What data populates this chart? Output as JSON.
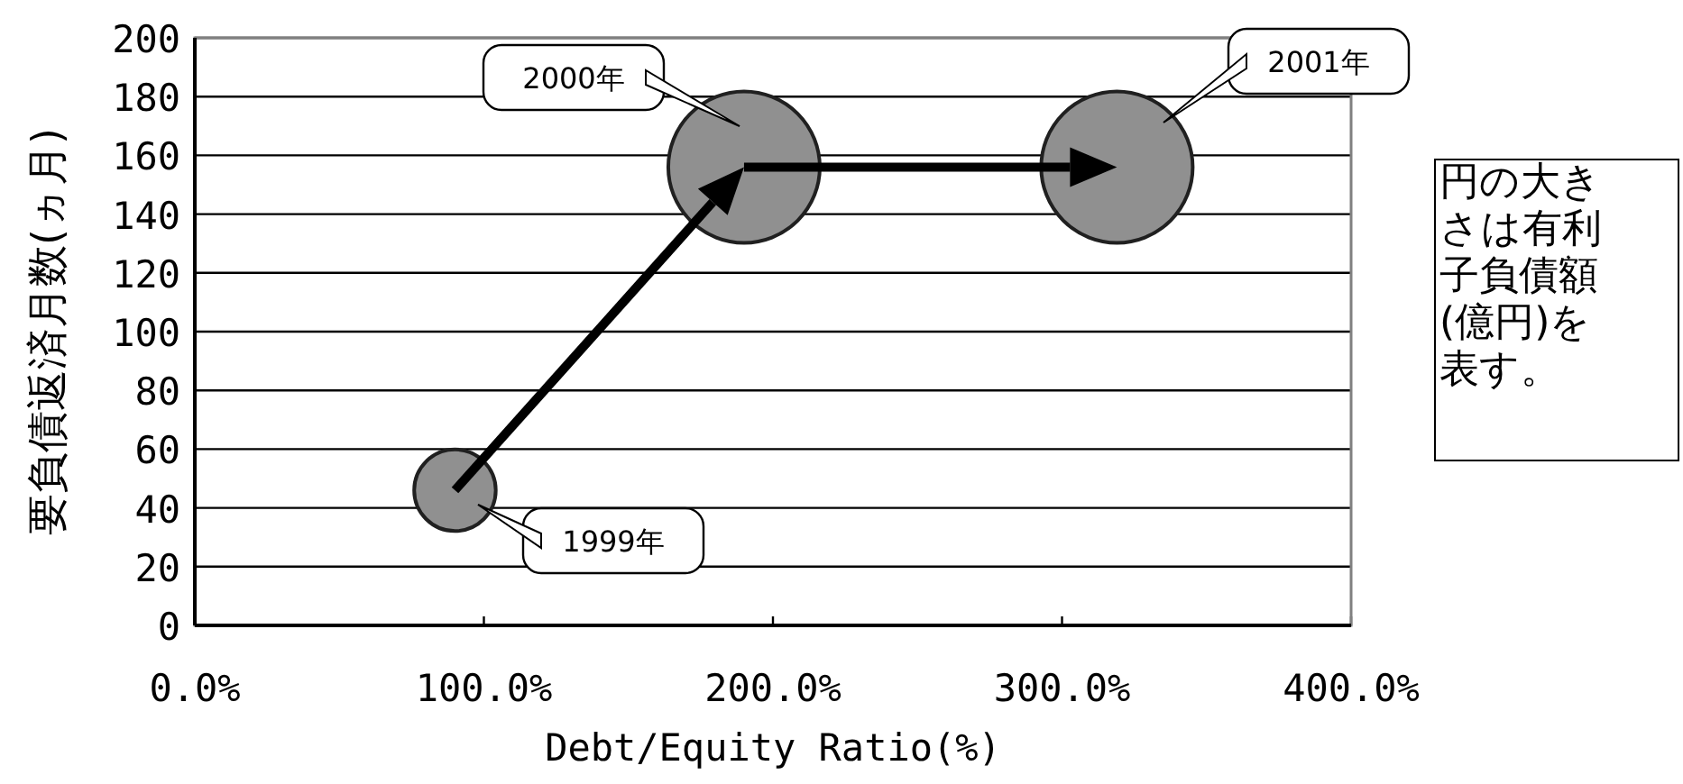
{
  "chart_data": {
    "type": "bubble",
    "xlabel": "Debt/Equity Ratio(%)",
    "ylabel": "要負債返済月数(ヵ月)",
    "x": [
      90,
      190,
      319
    ],
    "series": [
      {
        "color": "#909090",
        "values": [
          46,
          156,
          156
        ],
        "sizes": [
          0.29,
          1,
          1
        ]
      }
    ],
    "xlim": [
      0,
      400
    ],
    "ylim": [
      0,
      200
    ],
    "xticks": [
      {
        "value": 0,
        "label": "0.0%"
      },
      {
        "value": 100,
        "label": "100.0%"
      },
      {
        "value": 200,
        "label": "200.0%"
      },
      {
        "value": 300,
        "label": "300.0%"
      },
      {
        "value": 400,
        "label": "400.0%"
      }
    ],
    "yticks": [
      0,
      20,
      40,
      60,
      80,
      100,
      120,
      140,
      160,
      180,
      200
    ],
    "grid": "y",
    "annotations": [
      "1999年",
      "2000年",
      "2001年",
      "円の大きさは有利子負債額(億円)を表す。"
    ]
  }
}
